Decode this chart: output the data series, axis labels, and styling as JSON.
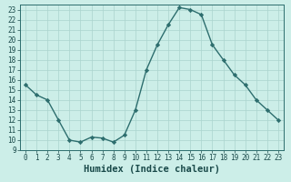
{
  "x": [
    0,
    1,
    2,
    3,
    4,
    5,
    6,
    7,
    8,
    9,
    10,
    11,
    12,
    13,
    14,
    15,
    16,
    17,
    18,
    19,
    20,
    21,
    22,
    23
  ],
  "y": [
    15.5,
    14.5,
    14.0,
    12.0,
    10.0,
    9.8,
    10.3,
    10.2,
    9.8,
    10.5,
    13.0,
    17.0,
    19.5,
    21.5,
    23.2,
    23.0,
    22.5,
    19.5,
    18.0,
    16.5,
    15.5,
    14.0,
    13.0,
    12.0
  ],
  "line_color": "#2d6e6e",
  "marker": "D",
  "marker_size": 2.2,
  "bg_color": "#cceee8",
  "grid_color": "#aad4ce",
  "xlabel": "Humidex (Indice chaleur)",
  "xlim": [
    -0.5,
    23.5
  ],
  "ylim": [
    9,
    23.5
  ],
  "yticks": [
    9,
    10,
    11,
    12,
    13,
    14,
    15,
    16,
    17,
    18,
    19,
    20,
    21,
    22,
    23
  ],
  "xticks": [
    0,
    1,
    2,
    3,
    4,
    5,
    6,
    7,
    8,
    9,
    10,
    11,
    12,
    13,
    14,
    15,
    16,
    17,
    18,
    19,
    20,
    21,
    22,
    23
  ],
  "tick_fontsize": 5.5,
  "xlabel_fontsize": 7.5,
  "line_width": 1.0
}
